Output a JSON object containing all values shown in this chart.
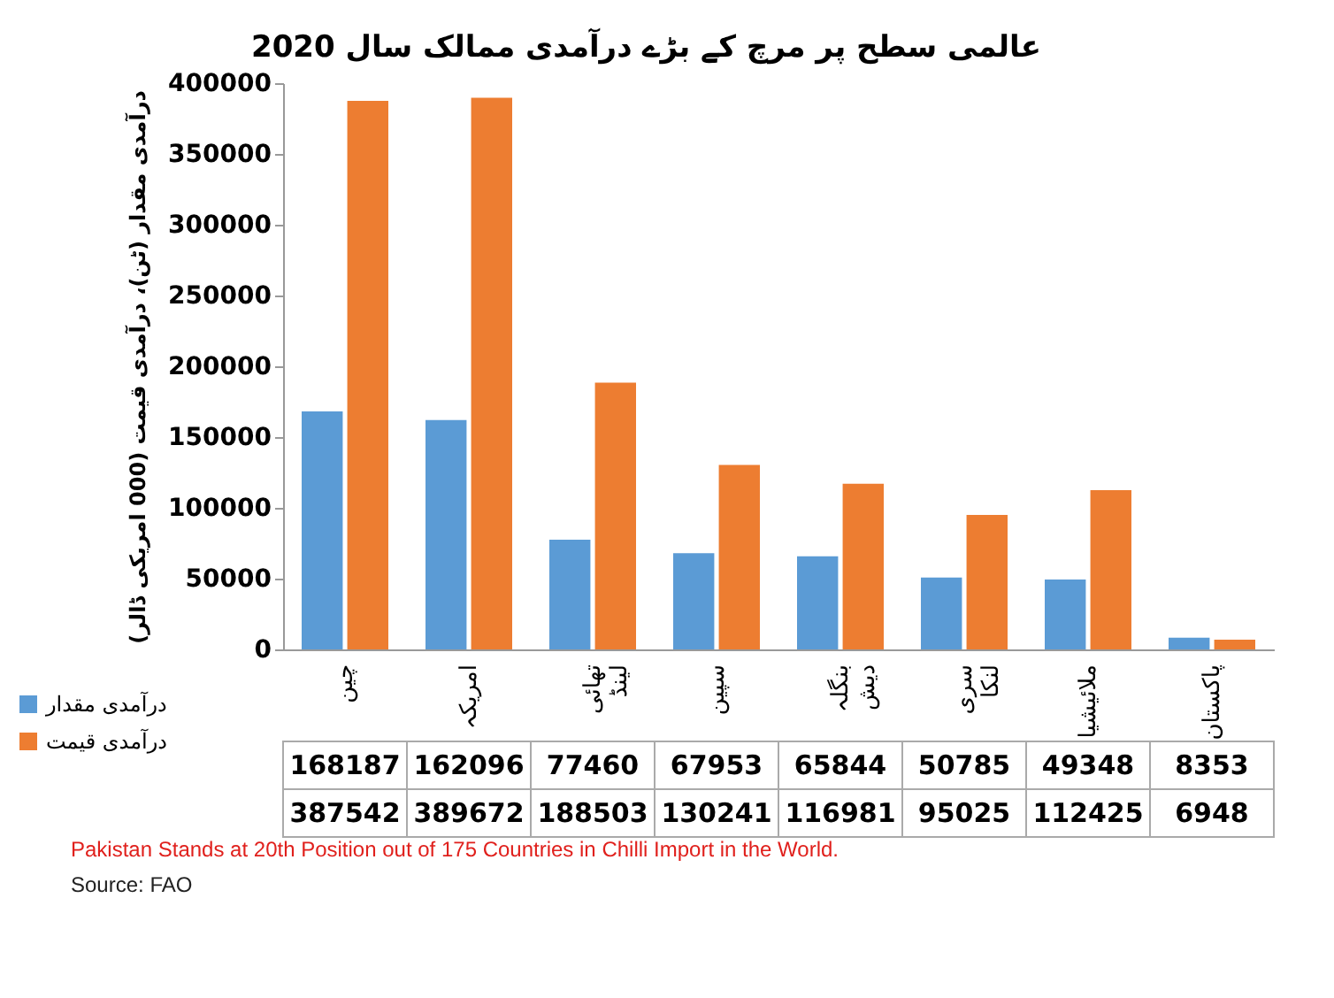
{
  "chart_data": {
    "type": "bar",
    "title": "عالمی سطح پر مرچ کے بڑے درآمدی ممالک سال 2020",
    "ylabel": "درآمدی مقدار (ٹن)، درآمدی قیمت (000 امریکی ڈالر)",
    "categories": [
      "چین",
      "امریکہ",
      "تھائی لینڈ",
      "سپین",
      "بنگلہ دیش",
      "سری لنکا",
      "ملائیشیا",
      "پاکستان"
    ],
    "series": [
      {
        "name": "درآمدی مقدار",
        "color": "#5b9bd5",
        "values": [
          168187,
          162096,
          77460,
          67953,
          65844,
          50785,
          49348,
          8353
        ]
      },
      {
        "name": "درآمدی قیمت",
        "color": "#ed7d31",
        "values": [
          387542,
          389672,
          188503,
          130241,
          116981,
          95025,
          112425,
          6948
        ]
      }
    ],
    "ylim": [
      0,
      400000
    ],
    "yticks": [
      0,
      50000,
      100000,
      150000,
      200000,
      250000,
      300000,
      350000,
      400000
    ],
    "grid": false,
    "legend": "bottom left",
    "data_labels": true,
    "annotations": [
      "Pakistan Stands at 20th Position out of 175 Countries in Chilli Import in the World.",
      "Source: FAO"
    ]
  }
}
